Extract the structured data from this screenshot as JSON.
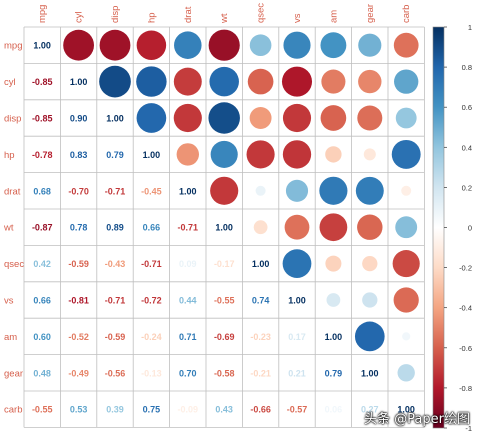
{
  "chart_data": {
    "type": "heatmap",
    "style": "correlation-matrix-mixed",
    "upper_triangle": "circle",
    "lower_triangle": "number",
    "variables": [
      "mpg",
      "cyl",
      "disp",
      "hp",
      "drat",
      "wt",
      "qsec",
      "vs",
      "am",
      "gear",
      "carb"
    ],
    "matrix": [
      [
        1.0,
        -0.85,
        -0.85,
        -0.78,
        0.68,
        -0.87,
        0.42,
        0.66,
        0.6,
        0.48,
        -0.55
      ],
      [
        -0.85,
        1.0,
        0.9,
        0.83,
        -0.7,
        0.78,
        -0.59,
        -0.81,
        -0.52,
        -0.49,
        0.53
      ],
      [
        -0.85,
        0.9,
        1.0,
        0.79,
        -0.71,
        0.89,
        -0.43,
        -0.71,
        -0.59,
        -0.56,
        0.39
      ],
      [
        -0.78,
        0.83,
        0.79,
        1.0,
        -0.45,
        0.66,
        -0.71,
        -0.72,
        -0.24,
        -0.13,
        0.75
      ],
      [
        0.68,
        -0.7,
        -0.71,
        -0.45,
        1.0,
        -0.71,
        0.09,
        0.44,
        0.71,
        0.7,
        -0.09
      ],
      [
        -0.87,
        0.78,
        0.89,
        0.66,
        -0.71,
        1.0,
        -0.17,
        -0.55,
        -0.69,
        -0.58,
        0.43
      ],
      [
        0.42,
        -0.59,
        -0.43,
        -0.71,
        0.09,
        -0.17,
        1.0,
        0.74,
        -0.23,
        -0.21,
        -0.66
      ],
      [
        0.66,
        -0.81,
        -0.71,
        -0.72,
        0.44,
        -0.55,
        0.74,
        1.0,
        0.17,
        0.21,
        -0.57
      ],
      [
        0.6,
        -0.52,
        -0.59,
        -0.24,
        0.71,
        -0.69,
        -0.23,
        0.17,
        1.0,
        0.79,
        0.06
      ],
      [
        0.48,
        -0.49,
        -0.56,
        -0.13,
        0.7,
        -0.58,
        -0.21,
        0.21,
        0.79,
        1.0,
        0.27
      ],
      [
        -0.55,
        0.53,
        0.39,
        0.75,
        -0.09,
        0.43,
        -0.66,
        -0.57,
        0.06,
        0.27,
        1.0
      ]
    ],
    "colorbar": {
      "ticks": [
        1,
        0.8,
        0.6,
        0.4,
        0.2,
        0,
        -0.2,
        -0.4,
        -0.6,
        -0.8,
        -1
      ],
      "tick_labels": [
        "1",
        "0.8",
        "0.6",
        "0.4",
        "0.2",
        "0",
        "-0.2",
        "-0.4",
        "-0.6",
        "-0.8",
        "-1"
      ],
      "range": [
        -1,
        1
      ]
    },
    "colors": {
      "negative_end": "#67001F",
      "positive_end": "#053061",
      "label_color": "#D6604D",
      "grid": "#bfbfbf"
    },
    "legend_placement": "right"
  },
  "watermark": "头条 @Paper绘图"
}
